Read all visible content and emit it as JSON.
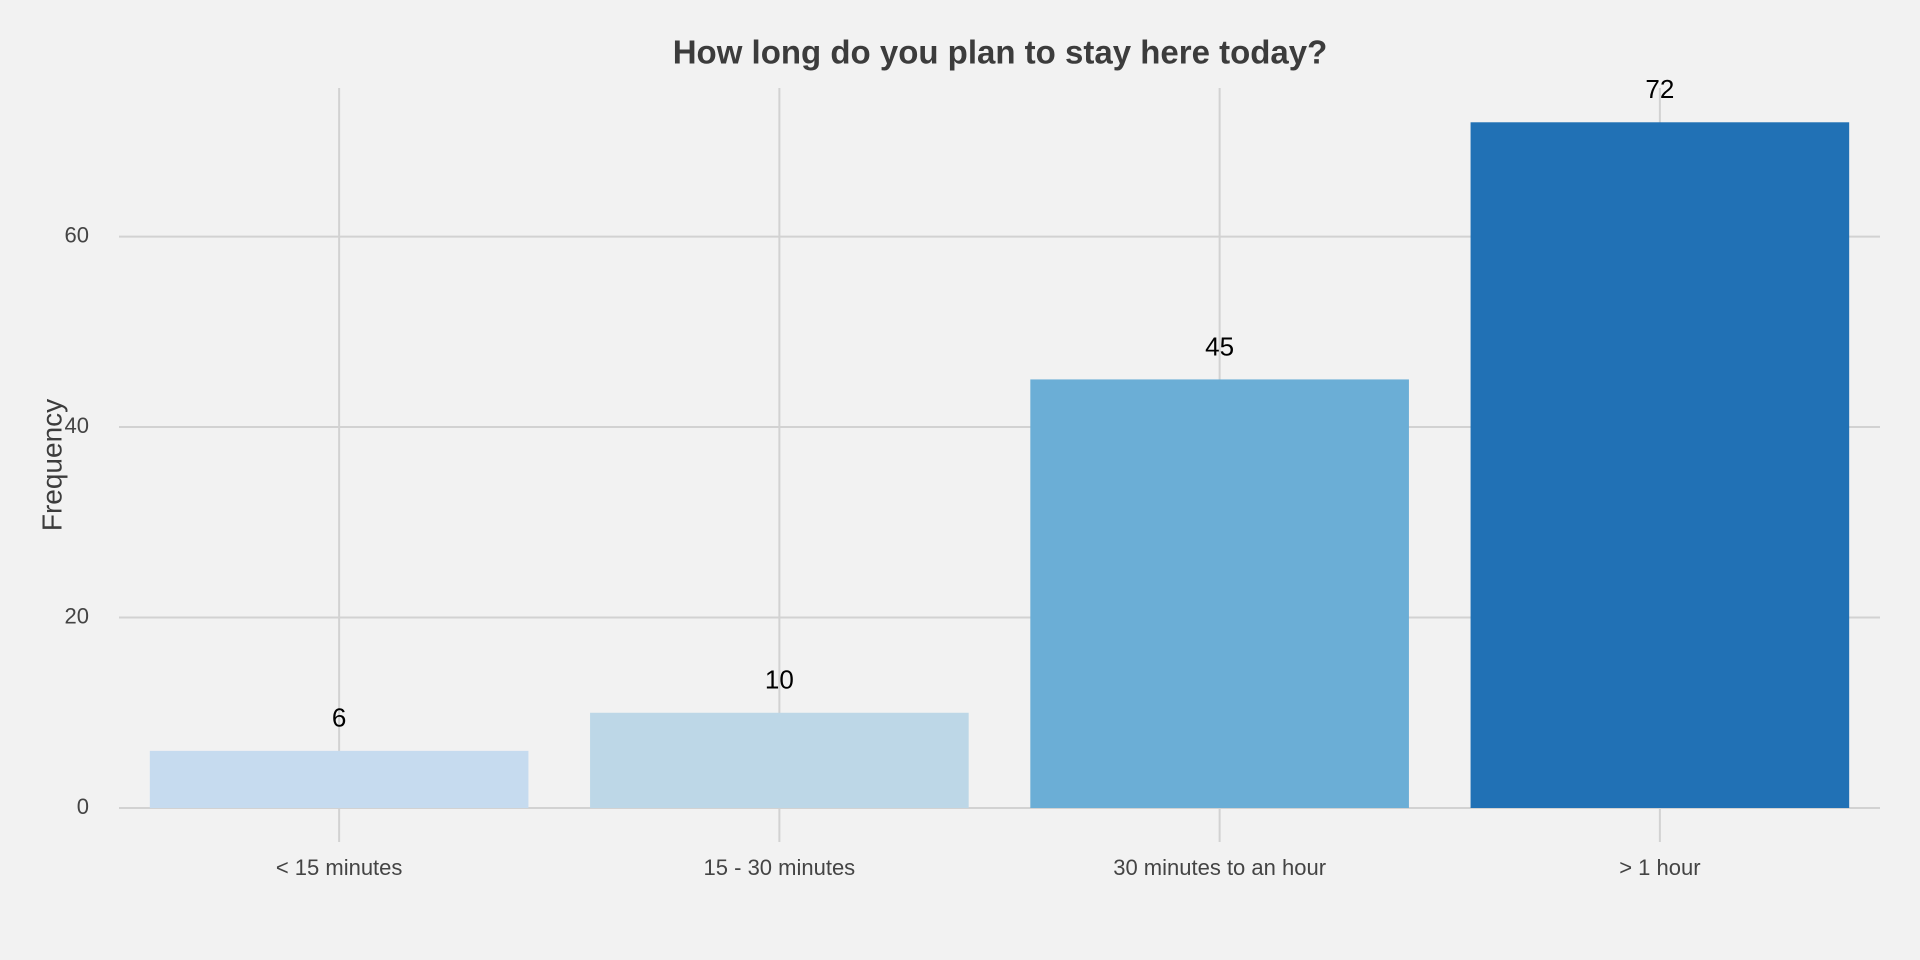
{
  "chart_data": {
    "type": "bar",
    "title": "How long do you plan to stay here today?",
    "y_label": "Frequency",
    "categories": [
      "< 15 minutes",
      "15 - 30 minutes",
      "30 minutes to an hour",
      "> 1 hour"
    ],
    "values": [
      6,
      10,
      45,
      72
    ],
    "colors": [
      "#c6dbef",
      "#bdd7e7",
      "#6baed6",
      "#2171b5"
    ],
    "ylim": [
      0,
      75.6
    ],
    "yticks": [
      0,
      20,
      40,
      60
    ],
    "grid": true
  }
}
